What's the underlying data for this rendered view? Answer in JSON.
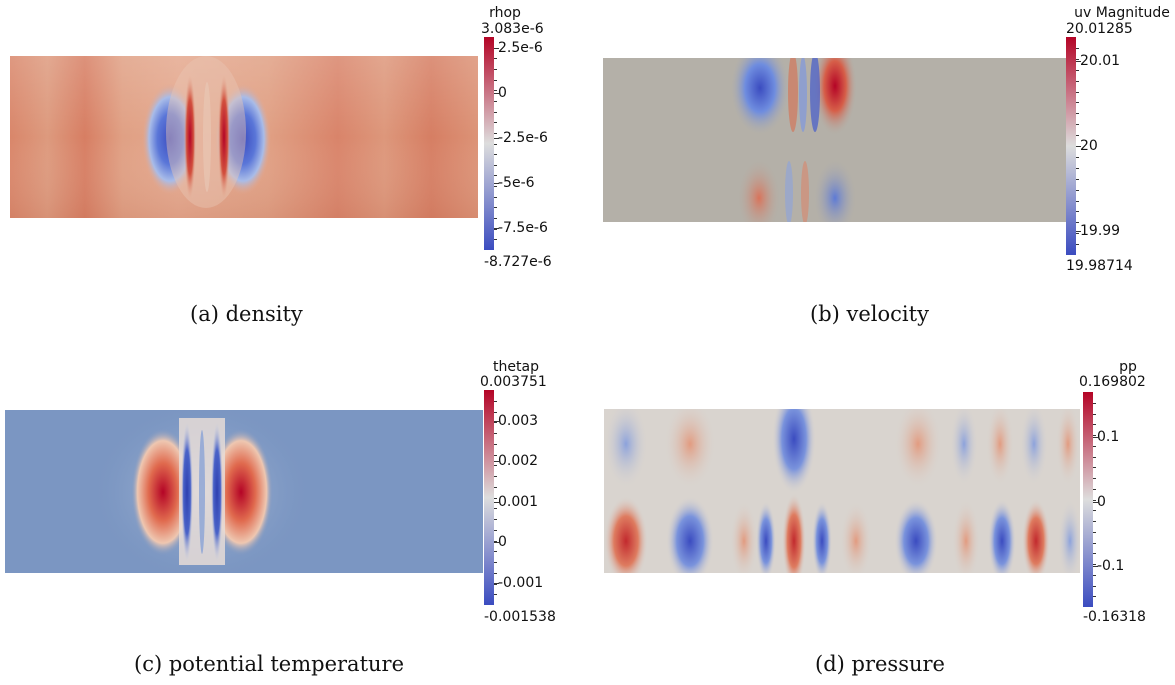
{
  "chart_data": [
    {
      "type": "heatmap",
      "title": "rhop",
      "caption": "(a) density",
      "colorbar": {
        "min": -8.727e-06,
        "max": 3.083e-06,
        "min_label": "-8.727e-6",
        "max_label": "3.083e-6",
        "ticks": [
          {
            "value": 2.5e-06,
            "label": "2.5e-6"
          },
          {
            "value": 0,
            "label": "0"
          },
          {
            "value": -2.5e-06,
            "label": "-2.5e-6"
          },
          {
            "value": -5e-06,
            "label": "-5e-6"
          },
          {
            "value": -7.5e-06,
            "label": "-7.5e-6"
          }
        ]
      },
      "colormap": "cool-to-warm",
      "grid": false
    },
    {
      "type": "heatmap",
      "title": "uv Magnitude",
      "caption": "(b) velocity",
      "colorbar": {
        "min": 19.98714,
        "max": 20.01285,
        "min_label": "19.98714",
        "max_label": "20.01285",
        "ticks": [
          {
            "value": 20.01,
            "label": "20.01"
          },
          {
            "value": 20,
            "label": "20"
          },
          {
            "value": 19.99,
            "label": "19.99"
          }
        ]
      },
      "colormap": "cool-to-warm",
      "grid": false
    },
    {
      "type": "heatmap",
      "title": "thetap",
      "caption": "(c) potential temperature",
      "colorbar": {
        "min": -0.001538,
        "max": 0.003751,
        "min_label": "-0.001538",
        "max_label": "0.003751",
        "ticks": [
          {
            "value": 0.003,
            "label": "0.003"
          },
          {
            "value": 0.002,
            "label": "0.002"
          },
          {
            "value": 0.001,
            "label": "0.001"
          },
          {
            "value": 0,
            "label": "0"
          },
          {
            "value": -0.001,
            "label": "-0.001"
          }
        ]
      },
      "colormap": "cool-to-warm",
      "grid": false
    },
    {
      "type": "heatmap",
      "title": "pp",
      "caption": "(d) pressure",
      "colorbar": {
        "min": -0.16318,
        "max": 0.169802,
        "min_label": "-0.16318",
        "max_label": "0.169802",
        "ticks": [
          {
            "value": 0.1,
            "label": "0.1"
          },
          {
            "value": 0,
            "label": "0"
          },
          {
            "value": -0.1,
            "label": "-0.1"
          }
        ]
      },
      "colormap": "cool-to-warm",
      "grid": false
    }
  ],
  "colors": {
    "cool": "#3b4cc0",
    "neutral": "#dddddd",
    "warm": "#b40426",
    "background_thetap": "#7b96c2",
    "background_uv": "#b4b0a8"
  }
}
